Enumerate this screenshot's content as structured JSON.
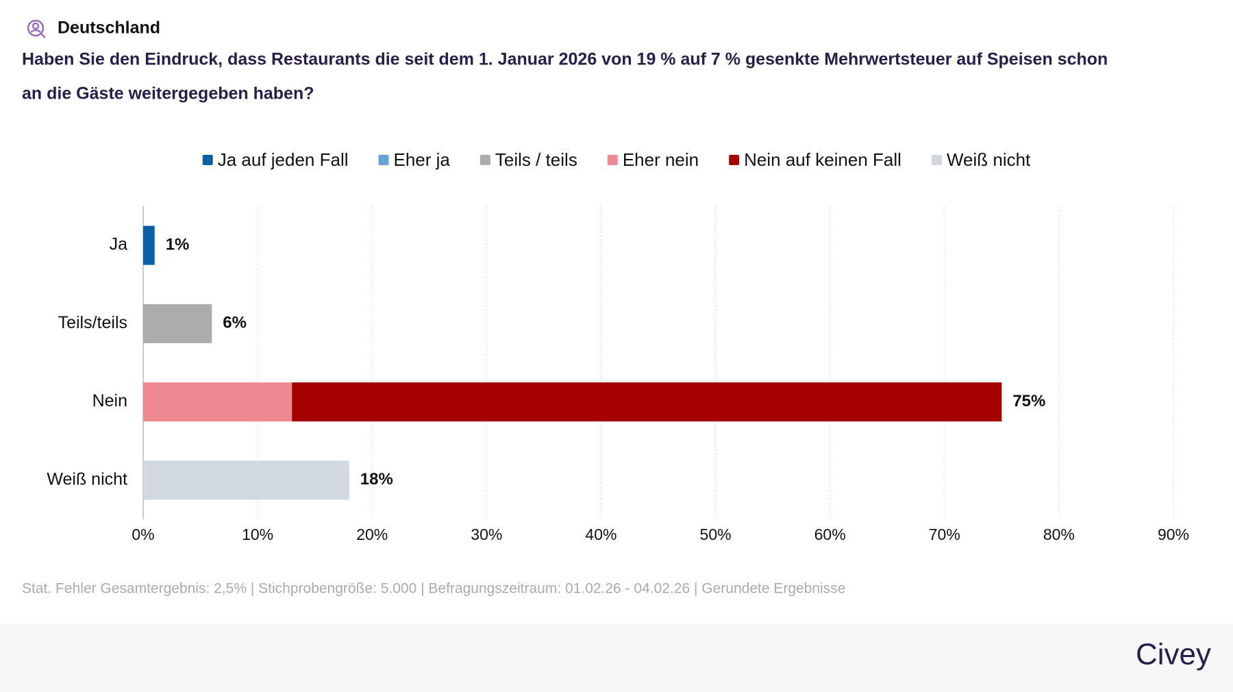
{
  "chart_data": {
    "type": "stacked-bar-horizontal",
    "location": "Deutschland",
    "title": "Haben Sie den Eindruck, dass Restaurants die seit dem 1. Januar 2026 von 19 % auf 7 % gesenkte Mehrwertsteuer auf Speisen schon",
    "title_line2": "an die Gäste weitergegeben haben?",
    "categories": [
      "Ja",
      "Teils/teils",
      "Nein",
      "Weiß nicht"
    ],
    "series": [
      {
        "name": "Ja auf jeden Fall",
        "color": "#0a5fa8",
        "values": [
          1,
          null,
          null,
          null
        ]
      },
      {
        "name": "Eher ja",
        "color": "#6a9fd8",
        "values": [
          null,
          null,
          null,
          null
        ]
      },
      {
        "name": "Teils / teils",
        "color": "#acacac",
        "values": [
          null,
          6,
          null,
          null
        ]
      },
      {
        "name": "Eher nein",
        "color": "#ef8a92",
        "values": [
          null,
          null,
          13,
          null
        ]
      },
      {
        "name": "Nein auf keinen Fall",
        "color": "#a50000",
        "values": [
          null,
          null,
          62,
          null
        ]
      },
      {
        "name": "Weiß nicht",
        "color": "#d0d8e0",
        "values": [
          null,
          null,
          null,
          18
        ]
      }
    ],
    "totals": [
      1,
      6,
      75,
      18
    ],
    "total_labels": [
      "1%",
      "6%",
      "75%",
      "18%"
    ],
    "xlim": [
      0,
      90
    ],
    "xticks": [
      {
        "value": 0,
        "label": "0%"
      },
      {
        "value": 10,
        "label": "10%"
      },
      {
        "value": 20,
        "label": "20%"
      },
      {
        "value": 30,
        "label": "30%"
      },
      {
        "value": 40,
        "label": "40%"
      },
      {
        "value": 50,
        "label": "50%"
      },
      {
        "value": 60,
        "label": "60%"
      },
      {
        "value": 70,
        "label": "70%"
      },
      {
        "value": 80,
        "label": "80%"
      },
      {
        "value": 90,
        "label": "90%"
      }
    ],
    "grid": true,
    "legend": "top",
    "note": "Stat. Fehler Gesamtergebnis: 2,5% | Stichprobengröße: 5.000 | Befragungszeitraum: 01.02.26 - 04.02.26 | Gerundete Ergebnisse",
    "brand": "Civey"
  }
}
